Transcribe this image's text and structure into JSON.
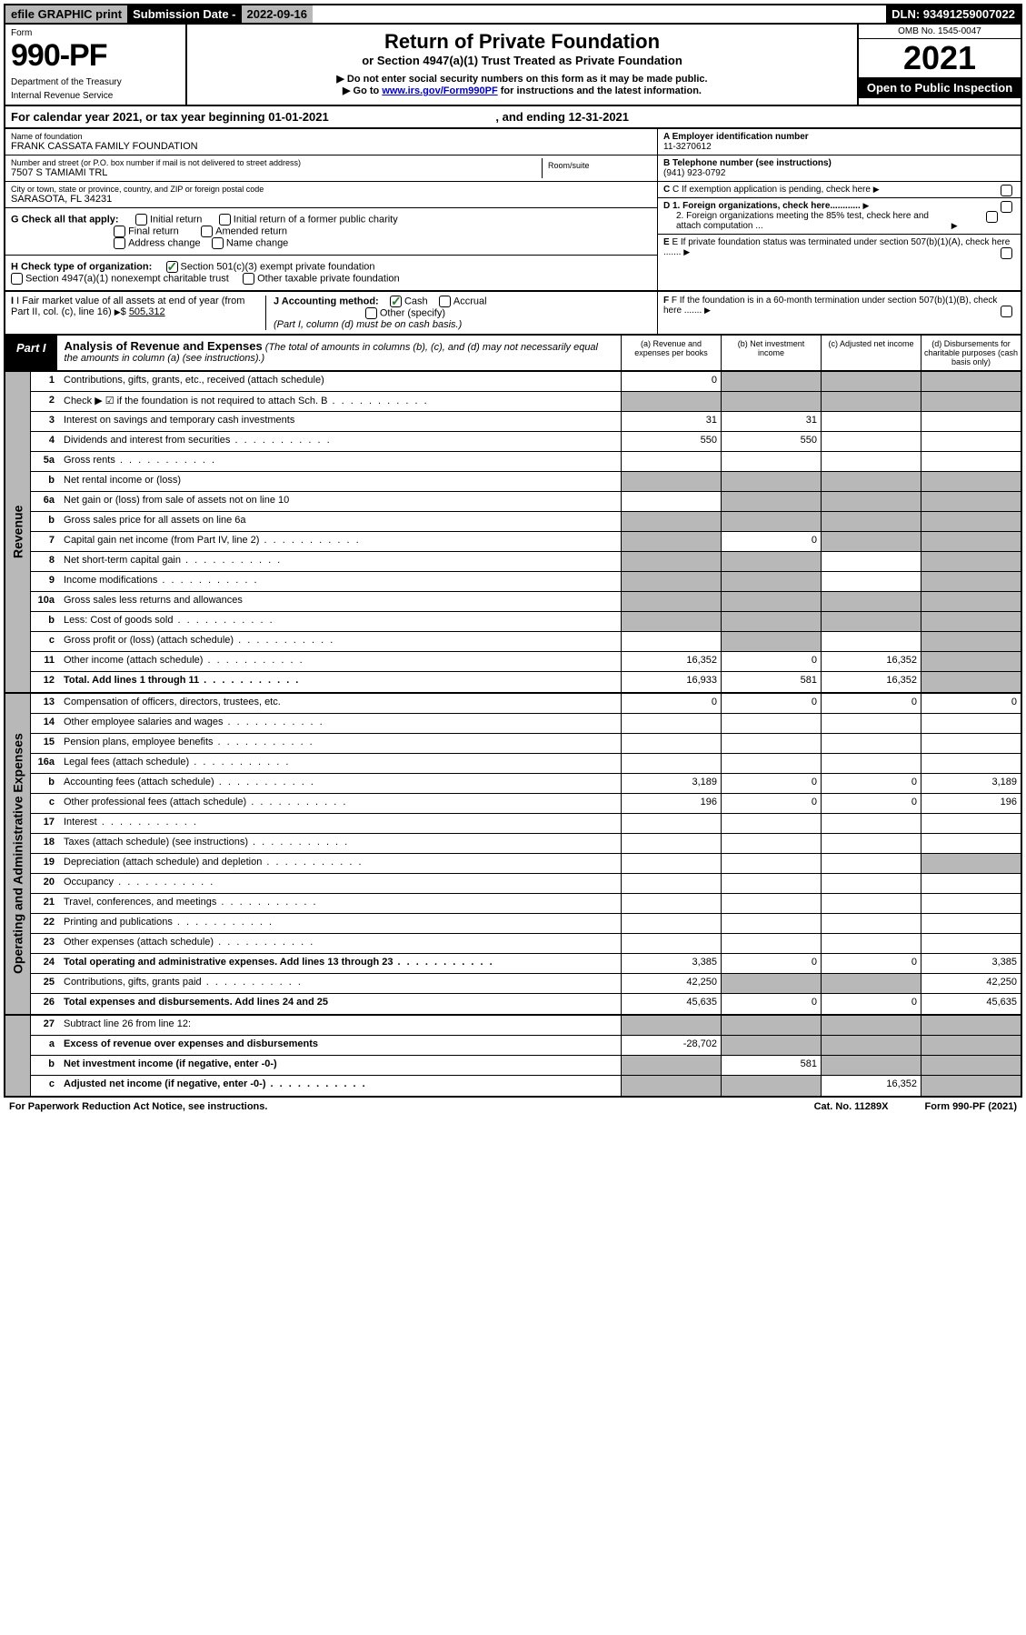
{
  "topbar": {
    "efile": "efile GRAPHIC print",
    "subdate_label": "Submission Date - ",
    "subdate": "2022-09-16",
    "dln": "DLN: 93491259007022"
  },
  "header": {
    "form_label": "Form",
    "form_num": "990-PF",
    "dept": "Department of the Treasury",
    "irs": "Internal Revenue Service",
    "title": "Return of Private Foundation",
    "subtitle": "or Section 4947(a)(1) Trust Treated as Private Foundation",
    "instr1": "▶ Do not enter social security numbers on this form as it may be made public.",
    "instr2_pre": "▶ Go to ",
    "instr2_link": "www.irs.gov/Form990PF",
    "instr2_post": " for instructions and the latest information.",
    "omb": "OMB No. 1545-0047",
    "year": "2021",
    "open": "Open to Public Inspection"
  },
  "calyear": {
    "text": "For calendar year 2021, or tax year beginning 01-01-2021",
    "ending": ", and ending 12-31-2021"
  },
  "info": {
    "name_label": "Name of foundation",
    "name": "FRANK CASSATA FAMILY FOUNDATION",
    "addr_label": "Number and street (or P.O. box number if mail is not delivered to street address)",
    "addr": "7507 S TAMIAMI TRL",
    "room_label": "Room/suite",
    "city_label": "City or town, state or province, country, and ZIP or foreign postal code",
    "city": "SARASOTA, FL  34231",
    "a_label": "A Employer identification number",
    "a_val": "11-3270612",
    "b_label": "B Telephone number (see instructions)",
    "b_val": "(941) 923-0792",
    "c_label": "C If exemption application is pending, check here",
    "d1_label": "D 1. Foreign organizations, check here............",
    "d2_label": "2. Foreign organizations meeting the 85% test, check here and attach computation ...",
    "e_label": "E  If private foundation status was terminated under section 507(b)(1)(A), check here .......",
    "f_label": "F  If the foundation is in a 60-month termination under section 507(b)(1)(B), check here ......."
  },
  "g": {
    "label": "G Check all that apply:",
    "opts": [
      "Initial return",
      "Initial return of a former public charity",
      "Final return",
      "Amended return",
      "Address change",
      "Name change"
    ]
  },
  "h": {
    "label": "H Check type of organization:",
    "opt1": "Section 501(c)(3) exempt private foundation",
    "opt2": "Section 4947(a)(1) nonexempt charitable trust",
    "opt3": "Other taxable private foundation"
  },
  "i": {
    "label": "I Fair market value of all assets at end of year (from Part II, col. (c), line 16) ",
    "val": "505,312"
  },
  "j": {
    "label": "J Accounting method:",
    "cash": "Cash",
    "accrual": "Accrual",
    "other": "Other (specify)",
    "note": "(Part I, column (d) must be on cash basis.)"
  },
  "part1": {
    "label": "Part I",
    "title": "Analysis of Revenue and Expenses",
    "title_note": "(The total of amounts in columns (b), (c), and (d) may not necessarily equal the amounts in column (a) (see instructions).)",
    "col_a": "(a)   Revenue and expenses per books",
    "col_b": "(b)   Net investment income",
    "col_c": "(c)   Adjusted net income",
    "col_d": "(d)   Disbursements for charitable purposes (cash basis only)"
  },
  "revenue_label": "Revenue",
  "revenue_rows": [
    {
      "n": "1",
      "d": "Contributions, gifts, grants, etc., received (attach schedule)",
      "a": "0",
      "shade_bcd": true
    },
    {
      "n": "2",
      "d": "Check ▶ ☑ if the foundation is not required to attach Sch. B",
      "dots": true,
      "shade_all": true
    },
    {
      "n": "3",
      "d": "Interest on savings and temporary cash investments",
      "a": "31",
      "b": "31"
    },
    {
      "n": "4",
      "d": "Dividends and interest from securities",
      "dots": true,
      "a": "550",
      "b": "550"
    },
    {
      "n": "5a",
      "d": "Gross rents",
      "dots": true
    },
    {
      "n": "b",
      "d": "Net rental income or (loss)",
      "shade_all": true,
      "inline": true
    },
    {
      "n": "6a",
      "d": "Net gain or (loss) from sale of assets not on line 10",
      "shade_bcd": true
    },
    {
      "n": "b",
      "d": "Gross sales price for all assets on line 6a",
      "shade_all": true,
      "inline": true
    },
    {
      "n": "7",
      "d": "Capital gain net income (from Part IV, line 2)",
      "dots": true,
      "shade_a": true,
      "b": "0",
      "shade_cd": true
    },
    {
      "n": "8",
      "d": "Net short-term capital gain",
      "dots": true,
      "shade_ab": true,
      "shade_d": true
    },
    {
      "n": "9",
      "d": "Income modifications",
      "dots": true,
      "shade_ab": true,
      "shade_d": true
    },
    {
      "n": "10a",
      "d": "Gross sales less returns and allowances",
      "shade_all": true,
      "inline": true
    },
    {
      "n": "b",
      "d": "Less: Cost of goods sold",
      "dots": true,
      "shade_all": true,
      "inline": true
    },
    {
      "n": "c",
      "d": "Gross profit or (loss) (attach schedule)",
      "dots": true,
      "shade_b": true,
      "shade_d": true
    },
    {
      "n": "11",
      "d": "Other income (attach schedule)",
      "dots": true,
      "a": "16,352",
      "b": "0",
      "c": "16,352",
      "shade_d": true
    },
    {
      "n": "12",
      "d": "Total. Add lines 1 through 11",
      "dots": true,
      "bold": true,
      "a": "16,933",
      "b": "581",
      "c": "16,352",
      "shade_d": true
    }
  ],
  "expenses_label": "Operating and Administrative Expenses",
  "expense_rows": [
    {
      "n": "13",
      "d": "Compensation of officers, directors, trustees, etc.",
      "a": "0",
      "b": "0",
      "c": "0",
      "dcol": "0"
    },
    {
      "n": "14",
      "d": "Other employee salaries and wages",
      "dots": true
    },
    {
      "n": "15",
      "d": "Pension plans, employee benefits",
      "dots": true
    },
    {
      "n": "16a",
      "d": "Legal fees (attach schedule)",
      "dots": true
    },
    {
      "n": "b",
      "d": "Accounting fees (attach schedule)",
      "dots": true,
      "a": "3,189",
      "b": "0",
      "c": "0",
      "dcol": "3,189"
    },
    {
      "n": "c",
      "d": "Other professional fees (attach schedule)",
      "dots": true,
      "a": "196",
      "b": "0",
      "c": "0",
      "dcol": "196"
    },
    {
      "n": "17",
      "d": "Interest",
      "dots": true
    },
    {
      "n": "18",
      "d": "Taxes (attach schedule) (see instructions)",
      "dots": true
    },
    {
      "n": "19",
      "d": "Depreciation (attach schedule) and depletion",
      "dots": true,
      "shade_d": true
    },
    {
      "n": "20",
      "d": "Occupancy",
      "dots": true
    },
    {
      "n": "21",
      "d": "Travel, conferences, and meetings",
      "dots": true
    },
    {
      "n": "22",
      "d": "Printing and publications",
      "dots": true
    },
    {
      "n": "23",
      "d": "Other expenses (attach schedule)",
      "dots": true
    },
    {
      "n": "24",
      "d": "Total operating and administrative expenses. Add lines 13 through 23",
      "dots": true,
      "bold": true,
      "a": "3,385",
      "b": "0",
      "c": "0",
      "dcol": "3,385"
    },
    {
      "n": "25",
      "d": "Contributions, gifts, grants paid",
      "dots": true,
      "a": "42,250",
      "shade_bc": true,
      "dcol": "42,250"
    },
    {
      "n": "26",
      "d": "Total expenses and disbursements. Add lines 24 and 25",
      "bold": true,
      "a": "45,635",
      "b": "0",
      "c": "0",
      "dcol": "45,635"
    }
  ],
  "net_rows": [
    {
      "n": "27",
      "d": "Subtract line 26 from line 12:",
      "shade_all": true
    },
    {
      "n": "a",
      "d": "Excess of revenue over expenses and disbursements",
      "bold": true,
      "a": "-28,702",
      "shade_bcd": true
    },
    {
      "n": "b",
      "d": "Net investment income (if negative, enter -0-)",
      "bold": true,
      "shade_a": true,
      "b": "581",
      "shade_cd": true
    },
    {
      "n": "c",
      "d": "Adjusted net income (if negative, enter -0-)",
      "dots": true,
      "bold": true,
      "shade_ab": true,
      "c": "16,352",
      "shade_d": true
    }
  ],
  "footer": {
    "left": "For Paperwork Reduction Act Notice, see instructions.",
    "center": "Cat. No. 11289X",
    "right": "Form 990-PF (2021)"
  }
}
